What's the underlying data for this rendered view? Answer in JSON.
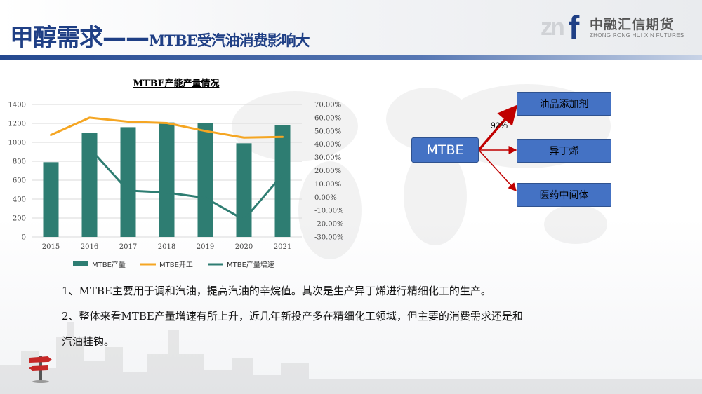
{
  "header": {
    "title_main": "甲醇需求——",
    "title_sub": "MTBE受汽油消费影响大",
    "logo_cn": "中融汇信期货",
    "logo_en": "ZHONG RONG HUI XIN FUTURES",
    "logo_mark": "zn",
    "logo_f": "f",
    "brand_color": "#1f3f85"
  },
  "chart_data": {
    "type": "bar",
    "title": "MTBE产能产量情况",
    "categories": [
      "2015",
      "2016",
      "2017",
      "2018",
      "2019",
      "2020",
      "2021"
    ],
    "ylim": [
      0,
      1400
    ],
    "y2lim": [
      -30,
      70
    ],
    "y_ticks": [
      "0",
      "200",
      "400",
      "600",
      "800",
      "1000",
      "1200",
      "1400"
    ],
    "y2_ticks": [
      "-30.00%",
      "-20.00%",
      "-10.00%",
      "0.00%",
      "10.00%",
      "20.00%",
      "30.00%",
      "40.00%",
      "50.00%",
      "60.00%",
      "70.00%"
    ],
    "grid": true,
    "legend_position": "bottom",
    "series": [
      {
        "name": "MTBE产量",
        "type": "bar",
        "axis": "left",
        "color": "#2e7d72",
        "values": [
          790,
          1100,
          1160,
          1210,
          1200,
          990,
          1180
        ]
      },
      {
        "name": "MTBE开工",
        "type": "line",
        "axis": "right",
        "color": "#f5a623",
        "values": [
          47,
          60,
          57,
          56,
          50,
          45,
          45.5
        ]
      },
      {
        "name": "MTBE产量增速",
        "type": "line",
        "axis": "right",
        "color": "#2e7d72",
        "values": [
          null,
          37,
          5,
          3.5,
          -0.5,
          -17,
          17
        ]
      }
    ]
  },
  "diagram": {
    "source": "MTBE",
    "share_label": "92%",
    "targets": [
      "油品添加剂",
      "异丁烯",
      "医药中间体"
    ]
  },
  "text": {
    "para1": "1、MTBE主要用于调和汽油，提高汽油的辛烷值。其次是生产异丁烯进行精细化工的生产。",
    "para2_line1": "2、整体来看MTBE产量增速有所上升，近几年新投产多在精细化工领域，但主要的消费需求还是和",
    "para2_line2": "汽油挂钩。"
  }
}
